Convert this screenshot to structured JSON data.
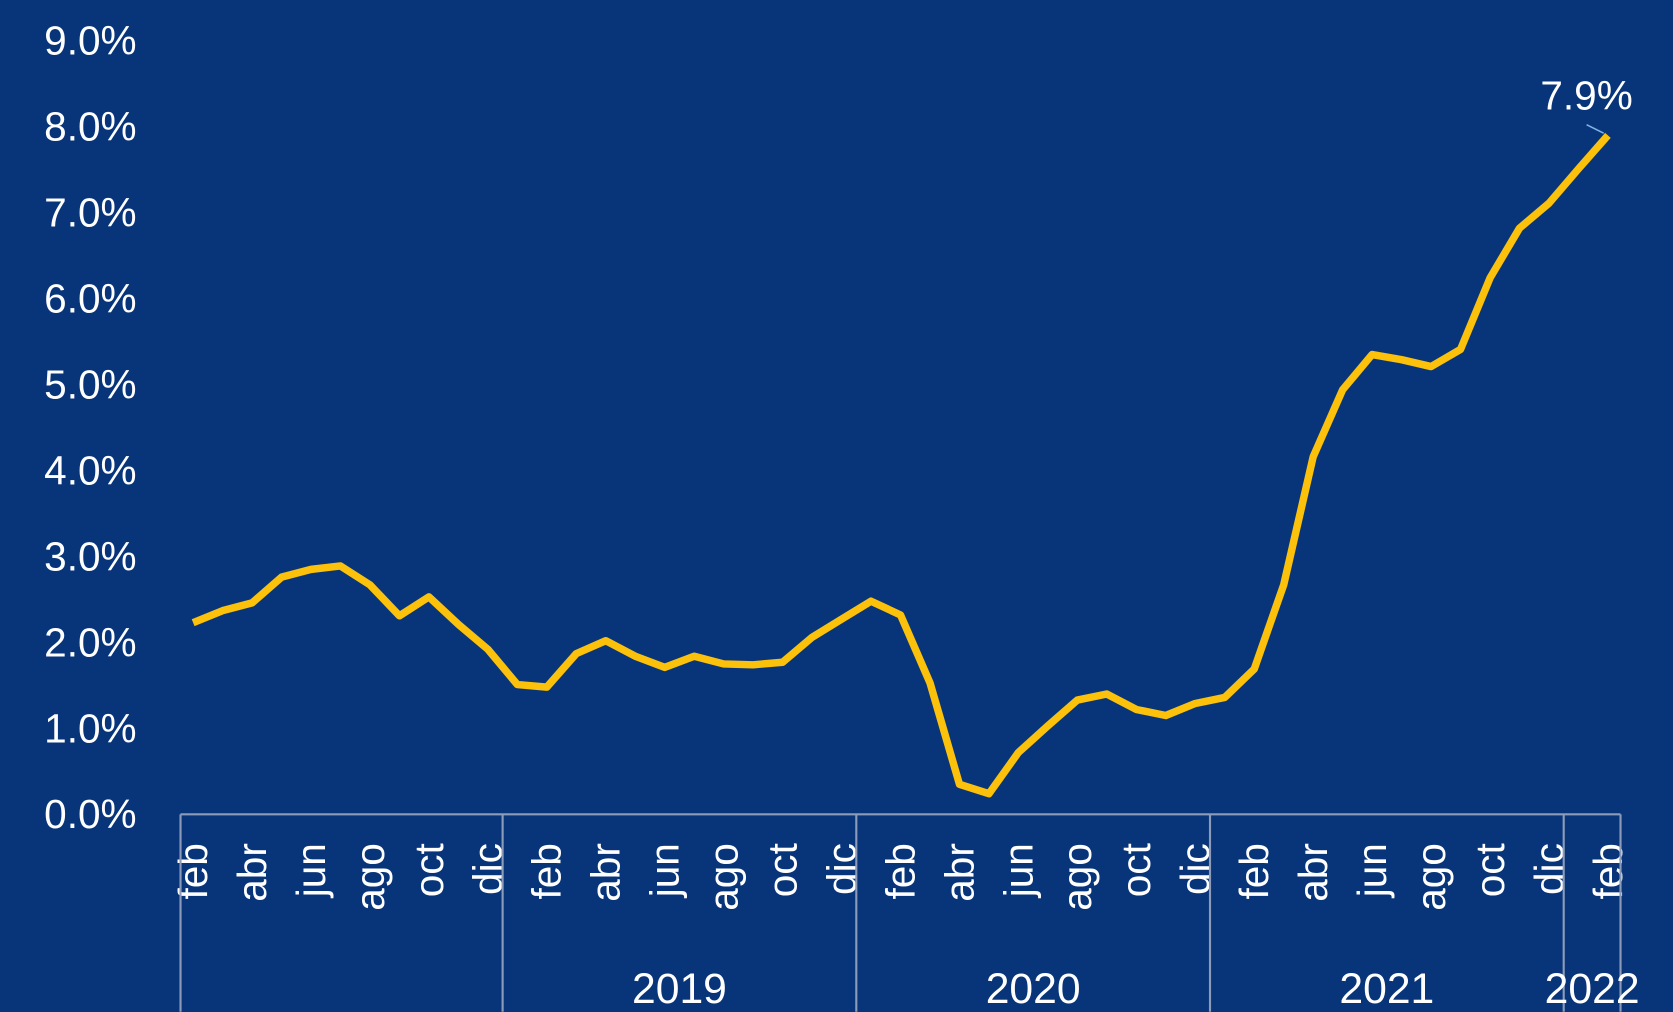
{
  "chart_data": {
    "type": "line",
    "categories": [
      "feb",
      null,
      "abr",
      null,
      "jun",
      null,
      "ago",
      null,
      "oct",
      null,
      "dic",
      null,
      "feb",
      null,
      "abr",
      null,
      "jun",
      null,
      "ago",
      null,
      "oct",
      null,
      "dic",
      null,
      "feb",
      null,
      "abr",
      null,
      "jun",
      null,
      "ago",
      null,
      "oct",
      null,
      "dic",
      null,
      "feb",
      null,
      "abr",
      null,
      "jun",
      null,
      "ago",
      null,
      "oct",
      null,
      "dic",
      null,
      "feb"
    ],
    "group_labels": [
      null,
      "2019",
      "2020",
      "2021",
      "2022"
    ],
    "group_sizes": [
      11,
      12,
      12,
      12,
      2
    ],
    "series": [
      {
        "color": "#fcc10a",
        "values": [
          2.23,
          2.37,
          2.46,
          2.76,
          2.85,
          2.89,
          2.67,
          2.31,
          2.53,
          2.21,
          1.92,
          1.51,
          1.48,
          1.87,
          2.02,
          1.84,
          1.71,
          1.84,
          1.75,
          1.74,
          1.77,
          2.06,
          2.27,
          2.48,
          2.32,
          1.53,
          0.35,
          0.24,
          0.72,
          1.03,
          1.33,
          1.4,
          1.22,
          1.15,
          1.29,
          1.36,
          1.69,
          2.67,
          4.16,
          4.94,
          5.35,
          5.29,
          5.21,
          5.41,
          6.24,
          6.82,
          7.11,
          7.51,
          7.9
        ],
        "value_labels": [
          null,
          null,
          null,
          null,
          null,
          null,
          null,
          null,
          null,
          null,
          null,
          null,
          null,
          null,
          null,
          null,
          null,
          null,
          null,
          null,
          null,
          null,
          null,
          null,
          null,
          null,
          null,
          null,
          null,
          null,
          null,
          null,
          null,
          null,
          null,
          null,
          null,
          null,
          null,
          null,
          null,
          null,
          null,
          null,
          null,
          null,
          null,
          null,
          "7.9%"
        ]
      }
    ],
    "ylim": [
      0,
      9
    ],
    "yticks": [
      {
        "value": 0,
        "label": "0.0%"
      },
      {
        "value": 1,
        "label": "1.0%"
      },
      {
        "value": 2,
        "label": "2.0%"
      },
      {
        "value": 3,
        "label": "3.0%"
      },
      {
        "value": 4,
        "label": "4.0%"
      },
      {
        "value": 5,
        "label": "5.0%"
      },
      {
        "value": 6,
        "label": "6.0%"
      },
      {
        "value": 7,
        "label": "7.0%"
      },
      {
        "value": 8,
        "label": "8.0%"
      },
      {
        "value": 9,
        "label": "9.0%"
      }
    ]
  }
}
